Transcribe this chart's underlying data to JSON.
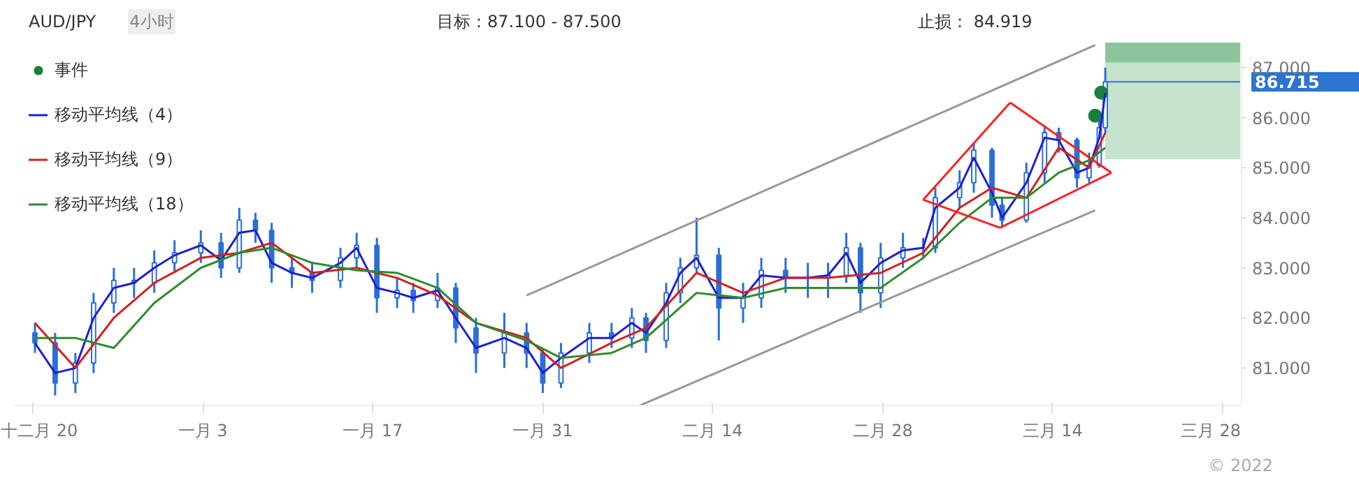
{
  "chart_data": {
    "type": "candlestick",
    "title": "AUD/JPY",
    "subtitle": "4小时",
    "annotations": [
      "目标：87.100 - 87.500",
      "止损： 84.919",
      "© 2022"
    ],
    "color": "#2a6fd6",
    "x": [
      "2021-12-20T04:00",
      "2021-12-21T20:00",
      "2021-12-23T12:00",
      "2021-12-25T00:00",
      "2021-12-26T16:00",
      "2021-12-28T08:00",
      "2021-12-30T00:00",
      "2021-12-31T16:00",
      "2022-01-02T20:00",
      "2022-01-04T12:00",
      "2022-01-06T00:00",
      "2022-01-07T08:00",
      "2022-01-08T16:00",
      "2022-01-10T08:00",
      "2022-01-12T00:00",
      "2022-01-14T08:00",
      "2022-01-15T16:00",
      "2022-01-17T08:00",
      "2022-01-19T00:00",
      "2022-01-20T08:00",
      "2022-01-22T08:00",
      "2022-01-23T20:00",
      "2022-01-25T12:00",
      "2022-01-27T20:00",
      "2022-01-29T16:00",
      "2022-01-31T00:00",
      "2022-02-01T12:00",
      "2022-02-03T20:00",
      "2022-02-05T16:00",
      "2022-02-07T08:00",
      "2022-02-08T12:00",
      "2022-02-10T04:00",
      "2022-02-11T08:00",
      "2022-02-12T16:00",
      "2022-02-14T12:00",
      "2022-02-16T12:00",
      "2022-02-18T00:00",
      "2022-02-20T00:00",
      "2022-02-21T20:00",
      "2022-02-23T12:00",
      "2022-02-25T00:00",
      "2022-02-26T04:00",
      "2022-02-27T20:00",
      "2022-03-01T16:00",
      "2022-03-03T08:00",
      "2022-03-04T08:00",
      "2022-03-06T08:00",
      "2022-03-07T12:00",
      "2022-03-09T00:00",
      "2022-03-09T20:00",
      "2022-03-11T20:00",
      "2022-03-13T08:00",
      "2022-03-14T12:00",
      "2022-03-16T00:00",
      "2022-03-17T00:00",
      "2022-03-17T20:00",
      "2022-03-18T08:00"
    ],
    "ohlc": [
      [
        81.7,
        81.9,
        81.3,
        81.5
      ],
      [
        81.5,
        81.7,
        80.45,
        80.7
      ],
      [
        80.7,
        81.3,
        80.5,
        81.1
      ],
      [
        81.1,
        82.5,
        80.9,
        82.3
      ],
      [
        82.3,
        83.0,
        82.1,
        82.75
      ],
      [
        82.75,
        83.0,
        82.4,
        82.7
      ],
      [
        82.7,
        83.35,
        82.5,
        83.1
      ],
      [
        83.1,
        83.55,
        82.9,
        83.3
      ],
      [
        83.3,
        83.75,
        83.1,
        83.5
      ],
      [
        83.5,
        83.7,
        82.8,
        83.0
      ],
      [
        83.0,
        84.2,
        82.9,
        83.95
      ],
      [
        83.95,
        84.1,
        83.5,
        83.75
      ],
      [
        83.75,
        83.9,
        82.7,
        83.0
      ],
      [
        83.0,
        83.2,
        82.6,
        82.9
      ],
      [
        82.9,
        83.1,
        82.5,
        82.75
      ],
      [
        82.75,
        83.4,
        82.6,
        83.2
      ],
      [
        83.2,
        83.7,
        83.0,
        83.45
      ],
      [
        83.45,
        83.6,
        82.1,
        82.4
      ],
      [
        82.4,
        82.8,
        82.2,
        82.55
      ],
      [
        82.55,
        82.7,
        82.1,
        82.35
      ],
      [
        82.35,
        82.9,
        82.2,
        82.6
      ],
      [
        82.6,
        82.7,
        81.5,
        81.8
      ],
      [
        81.8,
        82.0,
        80.9,
        81.3
      ],
      [
        81.3,
        82.1,
        81.0,
        81.7
      ],
      [
        81.7,
        81.9,
        81.0,
        81.3
      ],
      [
        81.3,
        81.4,
        80.5,
        80.7
      ],
      [
        80.7,
        81.5,
        80.6,
        81.3
      ],
      [
        81.3,
        81.9,
        81.1,
        81.7
      ],
      [
        81.7,
        81.9,
        81.4,
        81.6
      ],
      [
        81.6,
        82.2,
        81.4,
        82.0
      ],
      [
        82.0,
        82.1,
        81.3,
        81.55
      ],
      [
        81.55,
        82.7,
        81.4,
        82.5
      ],
      [
        82.5,
        83.2,
        82.3,
        83.0
      ],
      [
        83.0,
        84.0,
        82.9,
        83.25
      ],
      [
        83.25,
        83.4,
        81.55,
        82.2
      ],
      [
        82.2,
        82.7,
        81.9,
        82.4
      ],
      [
        82.4,
        83.2,
        82.2,
        82.95
      ],
      [
        82.95,
        83.2,
        82.5,
        82.8
      ],
      [
        82.8,
        83.1,
        82.4,
        82.8
      ],
      [
        82.8,
        83.1,
        82.4,
        82.85
      ],
      [
        82.85,
        83.7,
        82.7,
        83.4
      ],
      [
        83.4,
        83.5,
        82.1,
        82.5
      ],
      [
        82.5,
        83.5,
        82.2,
        83.2
      ],
      [
        83.2,
        83.7,
        83.0,
        83.4
      ],
      [
        83.4,
        83.6,
        83.2,
        83.4
      ],
      [
        83.4,
        84.6,
        83.3,
        84.4
      ],
      [
        84.4,
        84.95,
        84.2,
        84.7
      ],
      [
        84.7,
        85.5,
        84.5,
        85.35
      ],
      [
        85.35,
        85.4,
        84.0,
        84.25
      ],
      [
        84.25,
        84.4,
        83.8,
        83.95
      ],
      [
        83.95,
        85.1,
        83.9,
        84.9
      ],
      [
        84.9,
        85.85,
        84.7,
        85.7
      ],
      [
        85.7,
        85.8,
        85.3,
        85.55
      ],
      [
        85.55,
        85.6,
        84.6,
        84.8
      ],
      [
        84.8,
        85.3,
        84.7,
        85.05
      ],
      [
        85.05,
        86.0,
        85.0,
        85.8
      ],
      [
        85.8,
        87.0,
        85.7,
        86.715
      ]
    ],
    "series": [
      {
        "name": "事件",
        "type": "scatter",
        "marker": "circle",
        "color": "#1a7f3c",
        "x": [
          "2022-03-17T12:00",
          "2022-03-18T00:00"
        ],
        "values": [
          86.04,
          86.5
        ]
      },
      {
        "name": "移动平均线（4）",
        "type": "line",
        "color": "#1f1fd0",
        "x": [
          "2021-12-20T04:00",
          "2021-12-21T20:00",
          "2021-12-23T12:00",
          "2021-12-25T00:00",
          "2021-12-26T16:00",
          "2021-12-28T08:00",
          "2021-12-30T00:00",
          "2021-12-31T16:00",
          "2022-01-02T20:00",
          "2022-01-04T12:00",
          "2022-01-06T00:00",
          "2022-01-07T08:00",
          "2022-01-08T16:00",
          "2022-01-10T08:00",
          "2022-01-12T00:00",
          "2022-01-14T08:00",
          "2022-01-15T16:00",
          "2022-01-17T08:00",
          "2022-01-19T00:00",
          "2022-01-20T08:00",
          "2022-01-22T08:00",
          "2022-01-23T20:00",
          "2022-01-25T12:00",
          "2022-01-27T20:00",
          "2022-01-29T16:00",
          "2022-01-31T00:00",
          "2022-02-01T12:00",
          "2022-02-03T20:00",
          "2022-02-05T16:00",
          "2022-02-07T08:00",
          "2022-02-08T12:00",
          "2022-02-10T04:00",
          "2022-02-11T08:00",
          "2022-02-12T16:00",
          "2022-02-14T12:00",
          "2022-02-16T12:00",
          "2022-02-18T00:00",
          "2022-02-20T00:00",
          "2022-02-21T20:00",
          "2022-02-23T12:00",
          "2022-02-25T00:00",
          "2022-02-26T04:00",
          "2022-02-27T20:00",
          "2022-03-01T16:00",
          "2022-03-03T08:00",
          "2022-03-04T08:00",
          "2022-03-06T08:00",
          "2022-03-07T12:00",
          "2022-03-09T00:00",
          "2022-03-09T20:00",
          "2022-03-11T20:00",
          "2022-03-13T08:00",
          "2022-03-14T12:00",
          "2022-03-16T00:00",
          "2022-03-17T00:00",
          "2022-03-17T20:00",
          "2022-03-18T08:00"
        ],
        "values": [
          81.5,
          80.9,
          81.0,
          82.0,
          82.6,
          82.7,
          83.0,
          83.25,
          83.45,
          83.15,
          83.7,
          83.75,
          83.1,
          82.9,
          82.8,
          83.1,
          83.4,
          82.6,
          82.5,
          82.4,
          82.55,
          82.0,
          81.4,
          81.6,
          81.4,
          80.9,
          81.2,
          81.6,
          81.6,
          81.9,
          81.7,
          82.3,
          82.9,
          83.2,
          82.4,
          82.4,
          82.85,
          82.8,
          82.8,
          82.85,
          83.3,
          82.7,
          83.1,
          83.35,
          83.4,
          84.2,
          84.6,
          85.2,
          84.5,
          84.0,
          84.7,
          85.6,
          85.55,
          84.9,
          85.0,
          85.6,
          86.5
        ]
      },
      {
        "name": "移动平均线（9）",
        "type": "line",
        "color": "#d42020",
        "x": [
          "2021-12-20T04:00",
          "2021-12-23T12:00",
          "2021-12-26T16:00",
          "2021-12-30T00:00",
          "2022-01-02T20:00",
          "2022-01-06T00:00",
          "2022-01-08T16:00",
          "2022-01-12T00:00",
          "2022-01-15T16:00",
          "2022-01-19T00:00",
          "2022-01-22T08:00",
          "2022-01-25T12:00",
          "2022-01-29T16:00",
          "2022-02-01T12:00",
          "2022-02-05T16:00",
          "2022-02-08T12:00",
          "2022-02-12T16:00",
          "2022-02-16T12:00",
          "2022-02-20T00:00",
          "2022-02-23T12:00",
          "2022-02-27T20:00",
          "2022-03-03T08:00",
          "2022-03-06T08:00",
          "2022-03-09T00:00",
          "2022-03-11T20:00",
          "2022-03-14T12:00",
          "2022-03-17T00:00",
          "2022-03-18T08:00"
        ],
        "values": [
          81.9,
          81.0,
          82.0,
          82.7,
          83.2,
          83.3,
          83.5,
          82.9,
          83.0,
          82.8,
          82.45,
          81.9,
          81.6,
          81.0,
          81.5,
          81.8,
          82.9,
          82.5,
          82.8,
          82.8,
          82.9,
          83.3,
          84.2,
          84.6,
          84.4,
          85.4,
          85.0,
          85.7
        ]
      },
      {
        "name": "移动平均线（18）",
        "type": "line",
        "color": "#2e8b2e",
        "x": [
          "2021-12-20T04:00",
          "2021-12-23T12:00",
          "2021-12-26T16:00",
          "2021-12-30T00:00",
          "2022-01-02T20:00",
          "2022-01-06T00:00",
          "2022-01-08T16:00",
          "2022-01-12T00:00",
          "2022-01-15T16:00",
          "2022-01-19T00:00",
          "2022-01-22T08:00",
          "2022-01-25T12:00",
          "2022-01-29T16:00",
          "2022-02-01T12:00",
          "2022-02-05T16:00",
          "2022-02-08T12:00",
          "2022-02-12T16:00",
          "2022-02-16T12:00",
          "2022-02-20T00:00",
          "2022-02-23T12:00",
          "2022-02-27T20:00",
          "2022-03-03T08:00",
          "2022-03-06T08:00",
          "2022-03-09T00:00",
          "2022-03-11T20:00",
          "2022-03-14T12:00",
          "2022-03-17T00:00",
          "2022-03-18T08:00"
        ],
        "values": [
          81.6,
          81.6,
          81.4,
          82.3,
          83.0,
          83.3,
          83.4,
          83.1,
          82.95,
          82.9,
          82.6,
          81.9,
          81.55,
          81.2,
          81.3,
          81.6,
          82.5,
          82.4,
          82.6,
          82.6,
          82.6,
          83.2,
          83.9,
          84.4,
          84.4,
          84.9,
          85.15,
          85.4
        ]
      },
      {
        "type": "line",
        "color": "#999999",
        "x": [
          "2022-01-29T16:00",
          "2022-03-17T12:00"
        ],
        "values": [
          82.45,
          87.45
        ]
      },
      {
        "type": "line",
        "color": "#999999",
        "x": [
          "2022-02-08T00:00",
          "2022-03-17T12:00"
        ],
        "values": [
          80.25,
          84.15
        ]
      },
      {
        "type": "line",
        "color": "#ff2020",
        "x": [
          "2022-03-03T08:00",
          "2022-03-10T12:00"
        ],
        "values": [
          84.36,
          86.3
        ]
      },
      {
        "type": "line",
        "color": "#ff2020",
        "x": [
          "2022-03-10T12:00",
          "2022-03-18T20:00"
        ],
        "values": [
          86.3,
          84.9
        ]
      },
      {
        "type": "line",
        "color": "#ff2020",
        "x": [
          "2022-03-03T08:00",
          "2022-03-09T16:00"
        ],
        "values": [
          84.36,
          83.8
        ]
      },
      {
        "type": "line",
        "color": "#ff2020",
        "x": [
          "2022-03-09T16:00",
          "2022-03-18T20:00"
        ],
        "values": [
          83.8,
          84.9
        ]
      }
    ],
    "bands": [
      {
        "axis": "y",
        "from": 87.1,
        "to": 87.5,
        "color": "#8cc49c"
      },
      {
        "axis": "y",
        "from": 85.17,
        "to": 87.1,
        "color": "#c5e3cd"
      }
    ],
    "ref_lines": [
      {
        "axis": "y",
        "value": 86.715,
        "label": "86.715",
        "color": "#2b74d0"
      }
    ],
    "xlim": [
      "2021-12-18T12:00",
      "2022-03-29T12:00"
    ],
    "xticks": [
      {
        "value": "2021-12-20",
        "label": "十二月 20"
      },
      {
        "value": "2022-01-03",
        "label": "一月 3"
      },
      {
        "value": "2022-01-17",
        "label": "一月 17"
      },
      {
        "value": "2022-01-31",
        "label": "一月 31"
      },
      {
        "value": "2022-02-14",
        "label": "二月 14"
      },
      {
        "value": "2022-02-28",
        "label": "二月 28"
      },
      {
        "value": "2022-03-14",
        "label": "三月 14"
      },
      {
        "value": "2022-03-28",
        "label": "三月 28"
      }
    ],
    "ylim": [
      80.25,
      87.5
    ],
    "yticks": [
      {
        "value": 81,
        "label": "81.000"
      },
      {
        "value": 82,
        "label": "82.000"
      },
      {
        "value": 83,
        "label": "83.000"
      },
      {
        "value": 84,
        "label": "84.000"
      },
      {
        "value": 85,
        "label": "85.000"
      },
      {
        "value": 86,
        "label": "86.000"
      },
      {
        "value": 87,
        "label": "87.000"
      }
    ],
    "legend": "top left",
    "grid": false
  }
}
